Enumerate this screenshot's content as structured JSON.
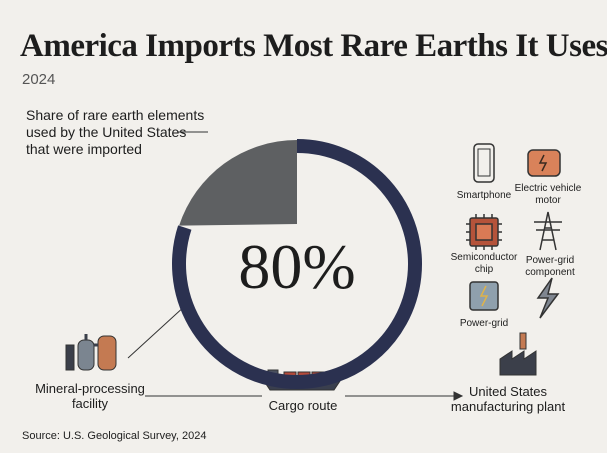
{
  "chart_data": {
    "type": "donut",
    "title": "America Imports Most Rare Earths It Uses",
    "subtitle": "2024",
    "label": [
      "Share of rare earth elements",
      "used by the United States",
      "that were imported"
    ],
    "values": [
      80
    ],
    "value_labels": [
      "80%"
    ],
    "color": "#2b3150",
    "remainder_color": "#5e6062"
  },
  "uses": [
    {
      "label": [
        "Smartphone"
      ]
    },
    {
      "label": [
        "Electric vehicle",
        "motor"
      ]
    },
    {
      "label": [
        "Semiconductor",
        "chip"
      ]
    },
    {
      "label": [
        "Power-grid",
        "component"
      ]
    },
    {
      "label": [
        "Power-grid"
      ]
    }
  ],
  "flow": [
    {
      "label": [
        "Mineral-processing",
        "facility"
      ]
    },
    {
      "label": [
        "Cargo route"
      ]
    },
    {
      "label": [
        "United States",
        "manufacturing plant"
      ]
    }
  ],
  "source": "Source: U.S. Geological Survey, 2024"
}
